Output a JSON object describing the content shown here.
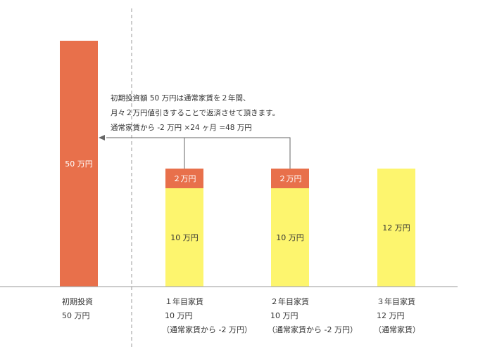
{
  "colors": {
    "investment": "#e8704b",
    "discount": "#e8704b",
    "rent": "#fdf56e",
    "axis": "#999999",
    "arrow": "#666666"
  },
  "chart_data": {
    "type": "bar",
    "stacked": true,
    "categories": [
      "初期投資",
      "１年目家賃",
      "２年目家賃",
      "３年目家賃"
    ],
    "series": [
      {
        "key": "rent",
        "values": [
          0,
          10,
          10,
          12
        ],
        "bar_labels": [
          "",
          "10 万円",
          "10 万円",
          "12 万円"
        ]
      },
      {
        "key": "discount",
        "values": [
          0,
          2,
          2,
          0
        ],
        "bar_labels": [
          "",
          "２万円",
          "２万円",
          ""
        ]
      },
      {
        "key": "investment",
        "values": [
          50,
          0,
          0,
          0
        ],
        "bar_labels": [
          "50 万円",
          "",
          "",
          ""
        ]
      }
    ],
    "ylim": [
      0,
      55
    ],
    "category_labels": [
      [
        "初期投資",
        "50 万円"
      ],
      [
        "１年目家賃",
        "10 万円",
        "（通常家賃から -2 万円）"
      ],
      [
        "２年目家賃",
        "10 万円",
        "（通常家賃から -2 万円）"
      ],
      [
        "３年目家賃",
        "12 万円",
        "（通常家賃）"
      ]
    ],
    "annotation": [
      "初期投資額 50 万円は通常家賃を２年間、",
      "月々２万円値引きすることで返済させて頂きます。",
      "通常家賃から -2 万円 ×24 ヶ月 =48 万円"
    ]
  }
}
